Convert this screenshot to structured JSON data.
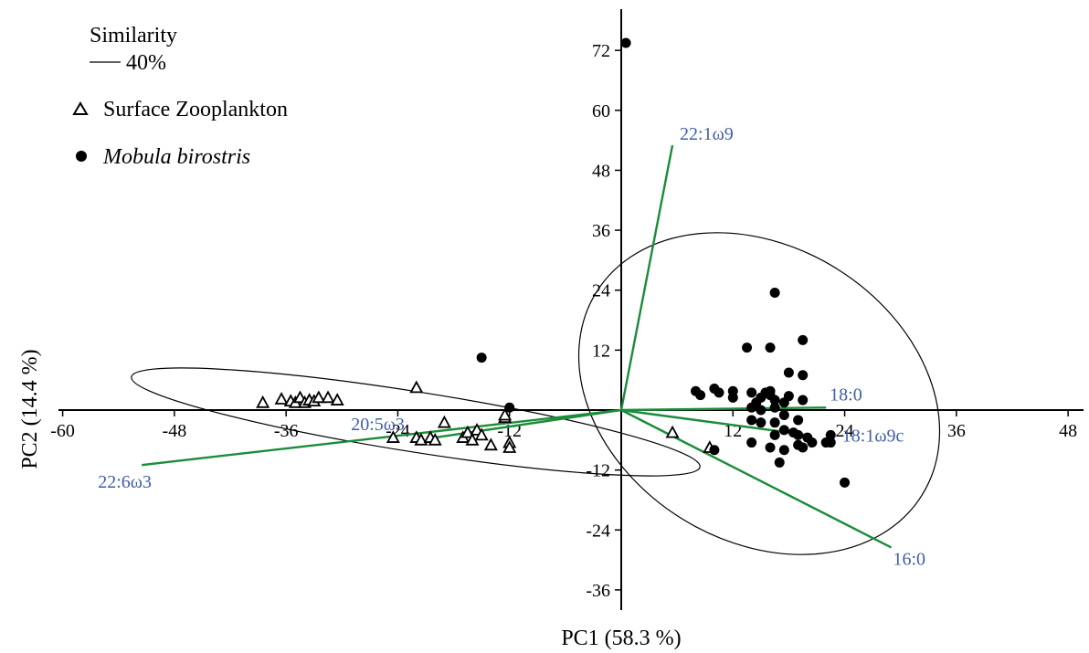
{
  "chart_data": {
    "type": "scatter",
    "xlabel": "PC1 (58.3 %)",
    "ylabel": "PC2 (14.4 %)",
    "xlim": [
      -60,
      50
    ],
    "ylim": [
      -40,
      80
    ],
    "xticks": [
      -60,
      -48,
      -36,
      -24,
      -12,
      12,
      24,
      36,
      48
    ],
    "yticks": [
      72,
      60,
      48,
      36,
      24,
      12,
      -12,
      -24,
      -36
    ],
    "xtick_labels": [
      "-60",
      "-48",
      "-36",
      "-24",
      "-12",
      "12",
      "24",
      "36",
      "48"
    ],
    "ytick_labels": [
      "72",
      "60",
      "48",
      "36",
      "24",
      "12",
      "-12",
      "-24",
      "-36"
    ],
    "legend": {
      "similarity_title": "Similarity",
      "similarity_value": "40%",
      "placement": "top-left"
    },
    "series": [
      {
        "name": "Surface Zooplankton",
        "marker": "triangle-open",
        "points": [
          [
            -38.5,
            1.5
          ],
          [
            -36.5,
            2.2
          ],
          [
            -35.5,
            1.8
          ],
          [
            -35.0,
            1.5
          ],
          [
            -34.5,
            2.5
          ],
          [
            -34.0,
            1.5
          ],
          [
            -33.5,
            2.0
          ],
          [
            -33.0,
            1.8
          ],
          [
            -32.5,
            2.5
          ],
          [
            -31.5,
            2.5
          ],
          [
            -30.5,
            2.0
          ],
          [
            -22.0,
            4.5
          ],
          [
            -24.5,
            -5.5
          ],
          [
            -22.0,
            -5.5
          ],
          [
            -21.5,
            -6.0
          ],
          [
            -20.5,
            -5.5
          ],
          [
            -20.0,
            -6.0
          ],
          [
            -19.0,
            -2.5
          ],
          [
            -17.0,
            -5.5
          ],
          [
            -16.5,
            -4.5
          ],
          [
            -16.0,
            -6.0
          ],
          [
            -15.5,
            -4.0
          ],
          [
            -15.0,
            -5.0
          ],
          [
            -14.0,
            -7.0
          ],
          [
            -12.5,
            -1.5
          ],
          [
            -12.0,
            -6.5
          ],
          [
            -12.0,
            -7.5
          ],
          [
            -12.5,
            -1.0
          ],
          [
            5.5,
            -4.5
          ],
          [
            9.5,
            -7.5
          ]
        ]
      },
      {
        "name": "Mobula birostris",
        "marker": "circle-filled",
        "points": [
          [
            0.5,
            73.5
          ],
          [
            -15.0,
            10.5
          ],
          [
            -12.0,
            0.5
          ],
          [
            16.5,
            23.5
          ],
          [
            16.0,
            12.5
          ],
          [
            13.5,
            12.5
          ],
          [
            19.5,
            14.0
          ],
          [
            18.0,
            7.5
          ],
          [
            19.5,
            7.0
          ],
          [
            8.0,
            3.8
          ],
          [
            8.5,
            3.0
          ],
          [
            10.0,
            4.3
          ],
          [
            10.5,
            3.5
          ],
          [
            12.0,
            3.8
          ],
          [
            12.0,
            2.5
          ],
          [
            14.0,
            3.5
          ],
          [
            14.5,
            1.5
          ],
          [
            15.0,
            2.5
          ],
          [
            15.5,
            3.5
          ],
          [
            16.0,
            3.8
          ],
          [
            16.5,
            2.0
          ],
          [
            16.0,
            3.0
          ],
          [
            17.5,
            1.5
          ],
          [
            18.0,
            2.8
          ],
          [
            14.0,
            0.5
          ],
          [
            15.0,
            0.0
          ],
          [
            16.5,
            0.5
          ],
          [
            17.5,
            -1.0
          ],
          [
            19.5,
            2.0
          ],
          [
            14.0,
            -2.0
          ],
          [
            15.0,
            -2.5
          ],
          [
            16.5,
            -2.5
          ],
          [
            17.5,
            -4.0
          ],
          [
            18.5,
            -4.5
          ],
          [
            19.0,
            -5.0
          ],
          [
            20.0,
            -5.5
          ],
          [
            20.5,
            -6.5
          ],
          [
            19.0,
            -7.0
          ],
          [
            19.5,
            -7.5
          ],
          [
            17.5,
            -8.0
          ],
          [
            16.5,
            -5.0
          ],
          [
            16.0,
            -7.5
          ],
          [
            14.0,
            -6.5
          ],
          [
            17.0,
            -10.5
          ],
          [
            10.0,
            -8.0
          ],
          [
            22.0,
            -6.5
          ],
          [
            22.5,
            -5.0
          ],
          [
            22.5,
            -6.5
          ],
          [
            24.0,
            -14.5
          ],
          [
            19.0,
            -2.0
          ]
        ]
      }
    ],
    "vectors": [
      {
        "label": "22:1ω9",
        "x": 5.5,
        "y": 53.0
      },
      {
        "label": "18:0",
        "x": 22.0,
        "y": 0.5
      },
      {
        "label": "18:1ω9c",
        "x": 20.0,
        "y": -5.0
      },
      {
        "label": "16:0",
        "x": 29.0,
        "y": -27.5
      },
      {
        "label": "22:6ω3",
        "x": -51.5,
        "y": -11.0
      },
      {
        "label": "20:5ω3",
        "x": -20.0,
        "y": -5.5
      }
    ],
    "colors": {
      "vector_line": "#1a8c3a",
      "vector_label": "#3f5ea8",
      "points": "#000000",
      "ellipse": "#000000"
    }
  }
}
